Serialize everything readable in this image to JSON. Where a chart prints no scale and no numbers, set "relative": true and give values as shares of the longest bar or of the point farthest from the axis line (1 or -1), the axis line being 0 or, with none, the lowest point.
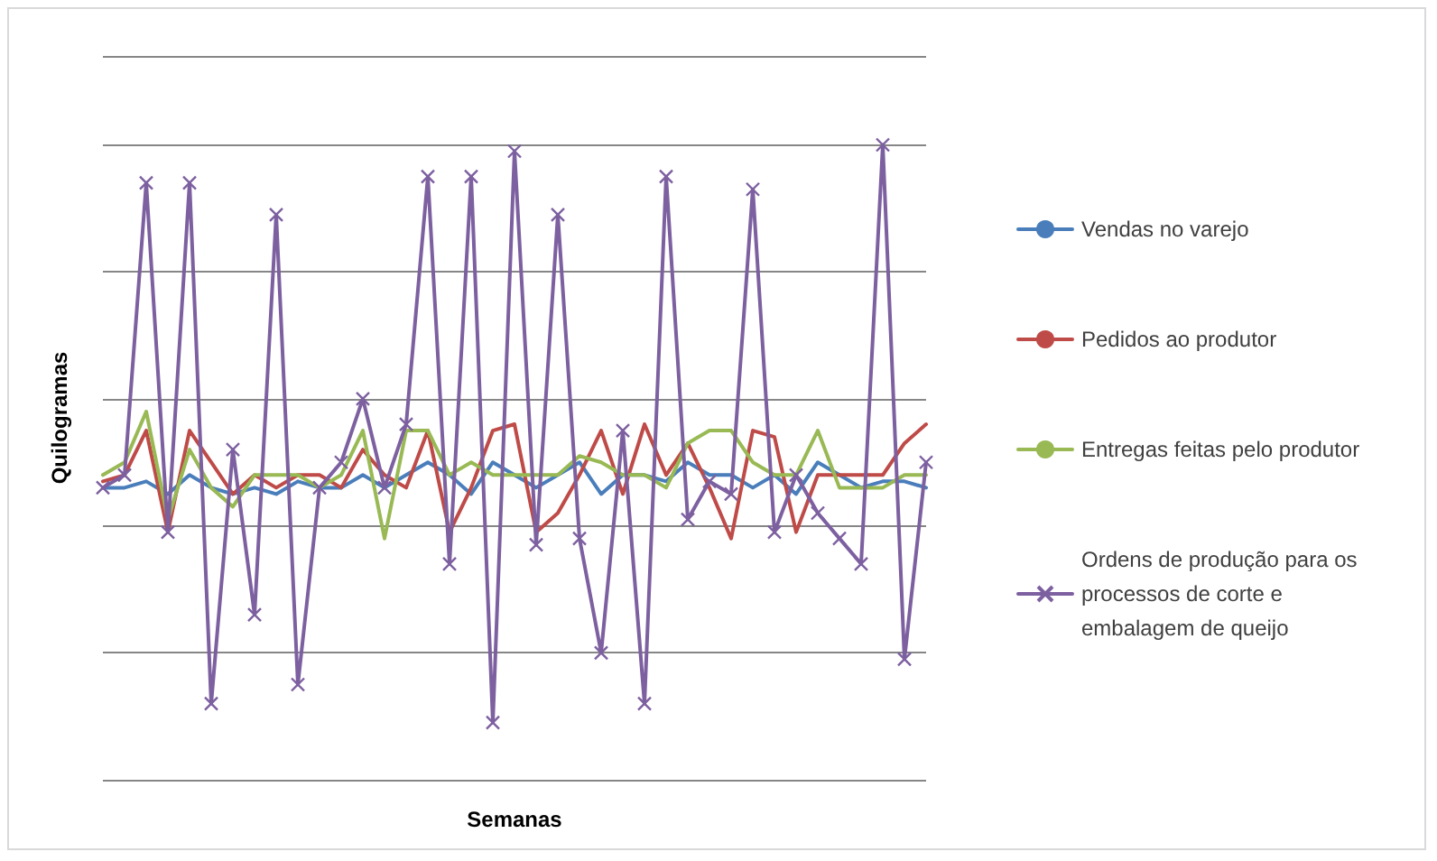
{
  "chart_data": {
    "type": "line",
    "relative": true,
    "xlabel": "Semanas",
    "ylabel": "Quilogramas",
    "grid": "y",
    "legend": "right",
    "line_style": "solid",
    "marker": "none",
    "categories": [
      null,
      null,
      null,
      null,
      null,
      null,
      null,
      null,
      null,
      null,
      null,
      null,
      null,
      null,
      null,
      null,
      null,
      null,
      null,
      null,
      null,
      null,
      null,
      null,
      null,
      null,
      null,
      null,
      null,
      null,
      null,
      null,
      null,
      null,
      null,
      null,
      null,
      null,
      null
    ],
    "series": [
      {
        "name": "Vendas no varejo",
        "color": "#4a7ebb",
        "values": [
          0.46,
          0.46,
          0.47,
          0.45,
          0.48,
          0.46,
          0.45,
          0.46,
          0.45,
          0.47,
          0.46,
          0.46,
          0.48,
          0.46,
          0.48,
          0.5,
          0.48,
          0.45,
          0.5,
          0.48,
          0.46,
          0.48,
          0.5,
          0.45,
          0.48,
          0.48,
          0.47,
          0.5,
          0.48,
          0.48,
          0.46,
          0.48,
          0.45,
          0.5,
          0.48,
          0.46,
          0.47,
          0.47,
          0.46
        ]
      },
      {
        "name": "Pedidos ao produtor",
        "color": "#be4b48",
        "values": [
          0.47,
          0.48,
          0.55,
          0.39,
          0.55,
          0.5,
          0.45,
          0.48,
          0.46,
          0.48,
          0.48,
          0.46,
          0.52,
          0.48,
          0.46,
          0.55,
          0.39,
          0.46,
          0.55,
          0.56,
          0.39,
          0.42,
          0.48,
          0.55,
          0.45,
          0.56,
          0.48,
          0.53,
          0.46,
          0.38,
          0.55,
          0.54,
          0.39,
          0.48,
          0.48,
          0.48,
          0.48,
          0.53,
          0.56
        ]
      },
      {
        "name": "Entregas feitas pelo produtor",
        "color": "#98b954",
        "values": [
          0.48,
          0.5,
          0.58,
          0.41,
          0.52,
          0.46,
          0.43,
          0.48,
          0.48,
          0.48,
          0.46,
          0.48,
          0.55,
          0.38,
          0.55,
          0.55,
          0.48,
          0.5,
          0.48,
          0.48,
          0.48,
          0.48,
          0.51,
          0.5,
          0.48,
          0.48,
          0.46,
          0.53,
          0.55,
          0.55,
          0.5,
          0.48,
          0.48,
          0.55,
          0.46,
          0.46,
          0.46,
          0.48,
          0.48
        ]
      },
      {
        "name": "Ordens de produção para os processos de corte e embalagem de queijo",
        "color": "#7d60a0",
        "marker": "cross",
        "values": [
          0.46,
          0.48,
          0.94,
          0.39,
          0.94,
          0.12,
          0.52,
          0.26,
          0.89,
          0.15,
          0.46,
          0.5,
          0.6,
          0.46,
          0.56,
          0.95,
          0.34,
          0.95,
          0.09,
          0.99,
          0.37,
          0.89,
          0.38,
          0.2,
          0.55,
          0.12,
          0.95,
          0.41,
          0.47,
          0.45,
          0.93,
          0.39,
          0.48,
          0.42,
          0.38,
          0.34,
          1,
          0.19,
          0.5
        ]
      }
    ]
  }
}
